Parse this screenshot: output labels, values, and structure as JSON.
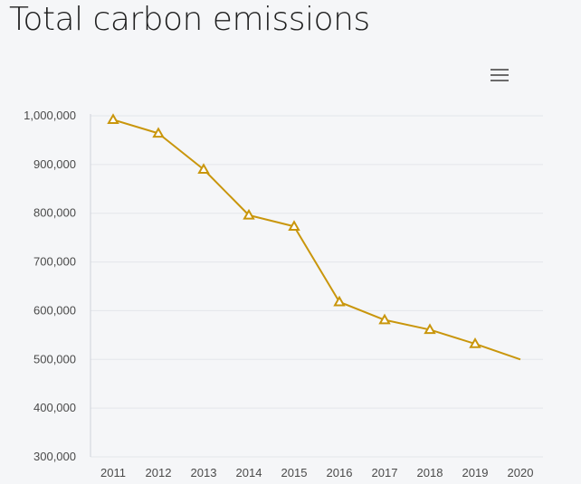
{
  "title": "Total carbon emissions",
  "menu": {
    "icon": "hamburger-menu-icon"
  },
  "colors": {
    "series": "#c9960c",
    "grid": "#e4e6ea",
    "axis": "#cfd3da"
  },
  "chart_data": {
    "type": "line",
    "title": "Total carbon emissions",
    "xlabel": "",
    "ylabel": "",
    "x": [
      "2011",
      "2012",
      "2013",
      "2014",
      "2015",
      "2016",
      "2017",
      "2018",
      "2019",
      "2020"
    ],
    "series": [
      {
        "marker": "triangle",
        "values": [
          992000,
          964000,
          890000,
          796000,
          773000,
          618000,
          581000,
          561000,
          532000,
          500000
        ],
        "markers_shown": [
          true,
          true,
          true,
          true,
          true,
          true,
          true,
          true,
          true,
          false
        ]
      }
    ],
    "ylim": [
      300000,
      1000000
    ],
    "yticks": [
      "300,000",
      "400,000",
      "500,000",
      "600,000",
      "700,000",
      "800,000",
      "900,000",
      "1,000,000"
    ],
    "grid": true,
    "legend": "none"
  }
}
